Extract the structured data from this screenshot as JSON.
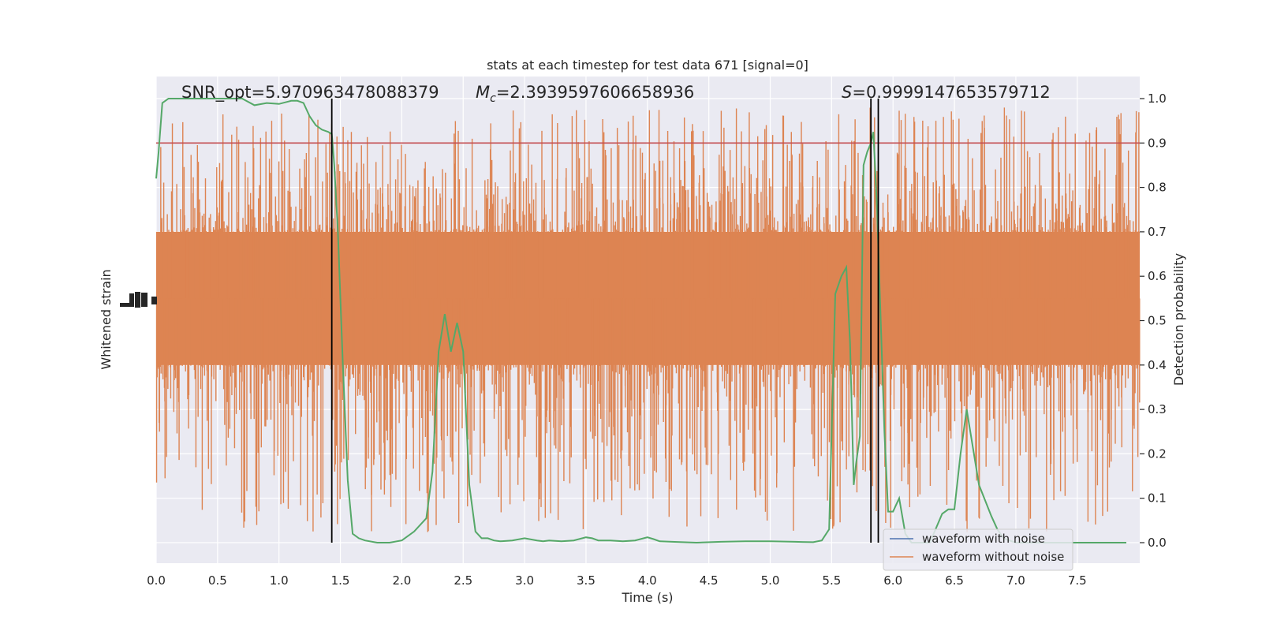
{
  "chart_data": {
    "type": "line",
    "title": "stats at each timestep for test data 671 [signal=0]",
    "xlabel": "Time (s)",
    "ylabel_left": "Whitened strain",
    "ylabel_right": "Detection probability",
    "xlim": [
      0,
      8
    ],
    "ylim_right": [
      -0.05,
      1.05
    ],
    "x_ticks": [
      0.0,
      0.5,
      1.0,
      1.5,
      2.0,
      2.5,
      3.0,
      3.5,
      4.0,
      4.5,
      5.0,
      5.5,
      6.0,
      6.5,
      7.0,
      7.5
    ],
    "x_tick_labels": [
      "0.0",
      "0.5",
      "1.0",
      "1.5",
      "2.0",
      "2.5",
      "3.0",
      "3.5",
      "4.0",
      "4.5",
      "5.0",
      "5.5",
      "6.0",
      "6.5",
      "7.0",
      "7.5"
    ],
    "y_right_ticks": [
      0.0,
      0.1,
      0.2,
      0.3,
      0.4,
      0.5,
      0.6,
      0.7,
      0.8,
      0.9,
      1.0
    ],
    "y_right_tick_labels": [
      "0.0",
      "0.1",
      "0.2",
      "0.3",
      "0.4",
      "0.5",
      "0.6",
      "0.7",
      "0.8",
      "0.9",
      "1.0"
    ],
    "annotations": {
      "snr": "SNR_opt=5.970963478088379",
      "mc_symbol": "M",
      "mc_subscript": "c",
      "mc_value": "=2.3939597606658936",
      "s_symbol": "S",
      "s_value": "=0.9999147653579712"
    },
    "threshold": {
      "value": 0.9,
      "color": "#c44e52"
    },
    "vertical_lines": [
      1.43,
      5.82,
      5.88
    ],
    "strain_band": {
      "color": "#dd8452",
      "core_range": [
        0.4,
        0.7
      ],
      "spike_range": [
        0.02,
        0.98
      ]
    },
    "legend": {
      "position": "lower right",
      "entries": [
        {
          "label": "waveform with noise",
          "color": "#4c72b0"
        },
        {
          "label": "waveform without noise",
          "color": "#dd8452"
        }
      ]
    },
    "series": [
      {
        "color": "#55a868",
        "x": [
          0.0,
          0.02,
          0.05,
          0.1,
          0.15,
          0.3,
          0.5,
          0.7,
          0.8,
          0.9,
          1.0,
          1.1,
          1.15,
          1.2,
          1.25,
          1.3,
          1.35,
          1.4,
          1.43,
          1.45,
          1.48,
          1.52,
          1.56,
          1.6,
          1.65,
          1.7,
          1.8,
          1.9,
          2.0,
          2.1,
          2.2,
          2.25,
          2.3,
          2.35,
          2.4,
          2.45,
          2.5,
          2.55,
          2.6,
          2.65,
          2.7,
          2.75,
          2.8,
          2.9,
          3.0,
          3.1,
          3.15,
          3.2,
          3.3,
          3.4,
          3.5,
          3.55,
          3.6,
          3.7,
          3.8,
          3.9,
          4.0,
          4.05,
          4.1,
          4.2,
          4.4,
          4.6,
          4.8,
          5.0,
          5.2,
          5.35,
          5.42,
          5.48,
          5.53,
          5.58,
          5.62,
          5.65,
          5.68,
          5.7,
          5.73,
          5.76,
          5.79,
          5.82,
          5.84,
          5.87,
          5.9,
          5.93,
          5.96,
          6.0,
          6.05,
          6.1,
          6.15,
          6.2,
          6.25,
          6.3,
          6.4,
          6.45,
          6.5,
          6.55,
          6.6,
          6.7,
          6.8,
          6.85,
          6.9,
          7.0,
          7.2,
          7.5,
          7.7,
          7.9
        ],
        "y": [
          0.82,
          0.88,
          0.99,
          1.0,
          1.0,
          1.0,
          1.0,
          1.0,
          0.985,
          0.99,
          0.988,
          0.995,
          0.995,
          0.99,
          0.96,
          0.94,
          0.93,
          0.925,
          0.92,
          0.85,
          0.7,
          0.4,
          0.14,
          0.02,
          0.01,
          0.005,
          0.0,
          0.0,
          0.005,
          0.025,
          0.055,
          0.16,
          0.43,
          0.515,
          0.43,
          0.495,
          0.43,
          0.13,
          0.025,
          0.01,
          0.01,
          0.005,
          0.003,
          0.005,
          0.01,
          0.005,
          0.003,
          0.005,
          0.003,
          0.005,
          0.012,
          0.01,
          0.005,
          0.005,
          0.003,
          0.005,
          0.012,
          0.008,
          0.003,
          0.002,
          0.0,
          0.002,
          0.003,
          0.003,
          0.002,
          0.001,
          0.005,
          0.03,
          0.56,
          0.6,
          0.62,
          0.45,
          0.13,
          0.18,
          0.24,
          0.85,
          0.88,
          0.9,
          0.925,
          0.75,
          0.5,
          0.25,
          0.07,
          0.07,
          0.1,
          0.02,
          0.0,
          0.0,
          0.0,
          0.0,
          0.065,
          0.075,
          0.075,
          0.2,
          0.3,
          0.13,
          0.06,
          0.03,
          0.01,
          0.0,
          0.0,
          0.0,
          0.0,
          0.0
        ]
      }
    ]
  }
}
